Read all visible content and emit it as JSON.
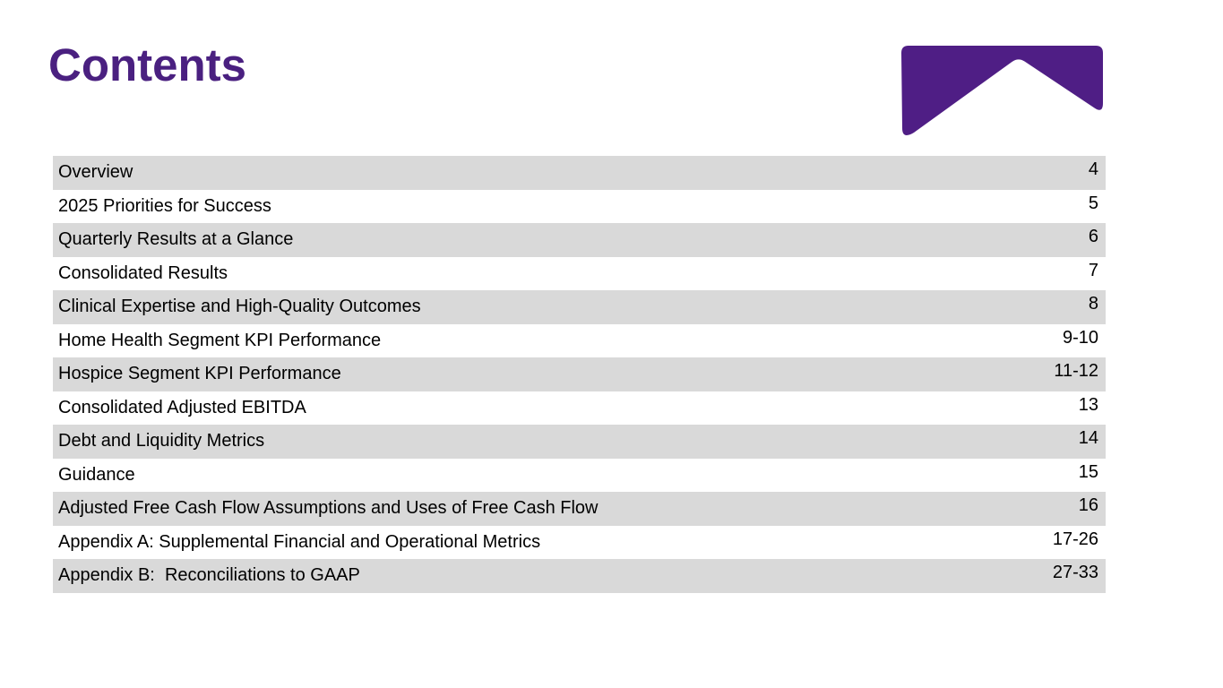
{
  "slide": {
    "title": "Contents",
    "colors": {
      "title": "#4A2080",
      "logo": "#4F1E85",
      "row_band": "#D9D9D9",
      "text": "#000000"
    },
    "logo": {
      "name": "roof-chevron-logo"
    },
    "toc": {
      "rows": [
        {
          "label": "Overview",
          "pages": "4"
        },
        {
          "label": "2025 Priorities for Success",
          "pages": "5"
        },
        {
          "label": "Quarterly Results at a Glance",
          "pages": "6"
        },
        {
          "label": "Consolidated Results",
          "pages": "7"
        },
        {
          "label": "Clinical Expertise and High-Quality Outcomes",
          "pages": "8"
        },
        {
          "label": "Home Health Segment KPI Performance",
          "pages": "9-10"
        },
        {
          "label": "Hospice Segment KPI Performance",
          "pages": "11-12"
        },
        {
          "label": "Consolidated Adjusted EBITDA",
          "pages": "13"
        },
        {
          "label": "Debt and Liquidity Metrics",
          "pages": "14"
        },
        {
          "label": "Guidance",
          "pages": "15"
        },
        {
          "label": "Adjusted Free Cash Flow Assumptions and Uses of Free Cash Flow",
          "pages": "16"
        },
        {
          "label": "Appendix A: Supplemental Financial and Operational Metrics",
          "pages": "17-26"
        },
        {
          "label": "Appendix B:  Reconciliations to GAAP",
          "pages": "27-33"
        }
      ]
    }
  }
}
